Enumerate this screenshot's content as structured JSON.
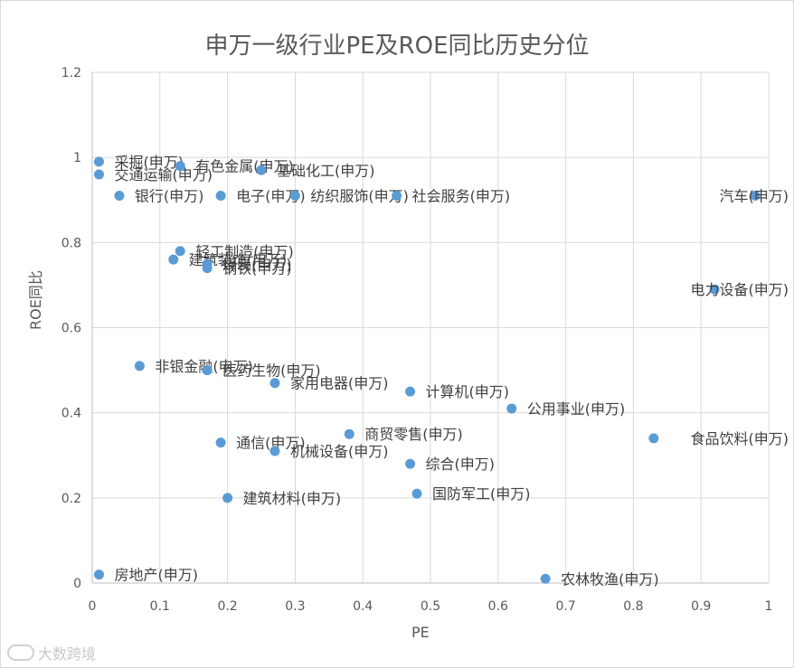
{
  "chart_data": {
    "type": "scatter",
    "title": "申万一级行业PE及ROE同比历史分位",
    "xlabel": "PE",
    "ylabel": "ROE同比",
    "xlim": [
      0,
      1
    ],
    "ylim": [
      0,
      1.2
    ],
    "x_ticks": [
      "0",
      "0.1",
      "0.2",
      "0.3",
      "0.4",
      "0.5",
      "0.6",
      "0.7",
      "0.8",
      "0.9",
      "1"
    ],
    "y_ticks": [
      "0",
      "0.2",
      "0.4",
      "0.6",
      "0.8",
      "1",
      "1.2"
    ],
    "grid": true,
    "marker_color": "#5b9bd5",
    "points": [
      {
        "label": "采掘(申万)",
        "x": 0.01,
        "y": 0.99
      },
      {
        "label": "交通运输(申万)",
        "x": 0.01,
        "y": 0.96
      },
      {
        "label": "有色金属(申万)",
        "x": 0.13,
        "y": 0.98
      },
      {
        "label": "基础化工(申万)",
        "x": 0.25,
        "y": 0.97
      },
      {
        "label": "银行(申万)",
        "x": 0.04,
        "y": 0.91
      },
      {
        "label": "电子(申万)",
        "x": 0.19,
        "y": 0.91
      },
      {
        "label": "纺织服饰(申万)",
        "x": 0.3,
        "y": 0.91
      },
      {
        "label": "社会服务(申万)",
        "x": 0.45,
        "y": 0.91
      },
      {
        "label": "汽车(申万)",
        "x": 0.98,
        "y": 0.91
      },
      {
        "label": "轻工制造(申万)",
        "x": 0.13,
        "y": 0.78
      },
      {
        "label": "建筑装饰(申万)",
        "x": 0.12,
        "y": 0.76
      },
      {
        "label": "煤炭(申万)",
        "x": 0.17,
        "y": 0.75
      },
      {
        "label": "钢铁(申万)",
        "x": 0.17,
        "y": 0.74
      },
      {
        "label": "电力设备(申万)",
        "x": 0.92,
        "y": 0.69
      },
      {
        "label": "非银金融(申万)",
        "x": 0.07,
        "y": 0.51
      },
      {
        "label": "医药生物(申万)",
        "x": 0.17,
        "y": 0.5
      },
      {
        "label": "家用电器(申万)",
        "x": 0.27,
        "y": 0.47
      },
      {
        "label": "计算机(申万)",
        "x": 0.47,
        "y": 0.45
      },
      {
        "label": "公用事业(申万)",
        "x": 0.62,
        "y": 0.41
      },
      {
        "label": "商贸零售(申万)",
        "x": 0.38,
        "y": 0.35
      },
      {
        "label": "食品饮料(申万)",
        "x": 0.83,
        "y": 0.34
      },
      {
        "label": "通信(申万)",
        "x": 0.19,
        "y": 0.33
      },
      {
        "label": "机械设备(申万)",
        "x": 0.27,
        "y": 0.31
      },
      {
        "label": "综合(申万)",
        "x": 0.47,
        "y": 0.28
      },
      {
        "label": "国防军工(申万)",
        "x": 0.48,
        "y": 0.21
      },
      {
        "label": "建筑材料(申万)",
        "x": 0.2,
        "y": 0.2
      },
      {
        "label": "房地产(申万)",
        "x": 0.01,
        "y": 0.02
      },
      {
        "label": "农林牧渔(申万)",
        "x": 0.67,
        "y": 0.01
      }
    ]
  },
  "watermark": "大数跨境"
}
